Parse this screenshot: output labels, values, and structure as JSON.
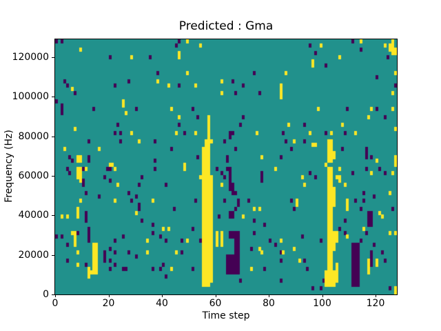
{
  "figure": {
    "background": "#ffffff"
  },
  "chart_data": {
    "type": "heatmap",
    "title": "Predicted : Gma",
    "xlabel": "Time step",
    "ylabel": "Frequency (Hz)",
    "x_range": [
      0,
      128
    ],
    "y_range": [
      0,
      129000
    ],
    "grid_shape": [
      128,
      64
    ],
    "x_ticks": [
      0,
      20,
      40,
      60,
      80,
      100,
      120
    ],
    "y_ticks": [
      0,
      20000,
      40000,
      60000,
      80000,
      100000,
      120000
    ],
    "grid": false,
    "legend": "none",
    "colors": {
      "mid": "#21918c",
      "low": "#440154",
      "high": "#fde725"
    },
    "cell_note": "entries are [timestep, bin] or [timestep, binLow, binHigh]; bin 0 = 0 Hz (bottom), each bin ~2000 Hz",
    "purple_cells": [
      [
        0,
        63
      ],
      [
        2,
        63
      ],
      [
        46,
        63
      ],
      [
        111,
        63
      ],
      [
        45,
        62
      ],
      [
        95,
        62
      ],
      [
        114,
        61
      ],
      [
        97,
        60
      ],
      [
        20,
        59
      ],
      [
        35,
        59
      ],
      [
        124,
        59
      ],
      [
        101,
        57
      ],
      [
        38,
        55
      ],
      [
        74,
        55
      ],
      [
        120,
        54
      ],
      [
        3,
        53
      ],
      [
        27,
        53
      ],
      [
        66,
        53
      ],
      [
        4,
        52
      ],
      [
        22,
        52
      ],
      [
        46,
        52
      ],
      [
        70,
        52
      ],
      [
        127,
        52
      ],
      [
        7,
        50
      ],
      [
        67,
        50
      ],
      [
        76,
        50
      ],
      [
        0,
        48
      ],
      [
        2,
        45,
        47
      ],
      [
        14,
        46
      ],
      [
        30,
        46
      ],
      [
        51,
        46
      ],
      [
        109,
        46
      ],
      [
        120,
        46
      ],
      [
        53,
        44
      ],
      [
        70,
        44
      ],
      [
        123,
        44
      ],
      [
        23,
        42
      ],
      [
        46,
        42
      ],
      [
        69,
        42
      ],
      [
        93,
        42
      ],
      [
        22,
        40
      ],
      [
        24,
        40
      ],
      [
        48,
        40
      ],
      [
        65,
        40
      ],
      [
        66,
        40
      ],
      [
        85,
        40
      ],
      [
        101,
        40
      ],
      [
        108,
        40
      ],
      [
        65,
        39
      ],
      [
        12,
        38
      ],
      [
        24,
        38
      ],
      [
        37,
        38
      ],
      [
        63,
        38
      ],
      [
        86,
        38
      ],
      [
        93,
        38
      ],
      [
        43,
        36
      ],
      [
        67,
        36
      ],
      [
        88,
        36
      ],
      [
        107,
        36
      ],
      [
        116,
        34,
        36
      ],
      [
        5,
        34
      ],
      [
        12,
        33,
        34
      ],
      [
        53,
        34
      ],
      [
        64,
        33,
        34
      ],
      [
        84,
        34
      ],
      [
        118,
        34
      ],
      [
        6,
        33
      ],
      [
        37,
        33
      ],
      [
        4,
        31
      ],
      [
        10,
        31
      ],
      [
        19,
        31
      ],
      [
        20,
        31
      ],
      [
        37,
        31
      ],
      [
        60,
        31
      ],
      [
        64,
        31
      ],
      [
        116,
        31
      ],
      [
        121,
        31
      ],
      [
        5,
        30
      ],
      [
        62,
        30
      ],
      [
        65,
        28,
        31
      ],
      [
        77,
        28,
        30
      ],
      [
        95,
        30
      ],
      [
        111,
        30
      ],
      [
        123,
        30
      ],
      [
        18,
        29
      ],
      [
        32,
        29
      ],
      [
        63,
        29
      ],
      [
        97,
        29
      ],
      [
        10,
        27,
        28
      ],
      [
        20,
        28
      ],
      [
        31,
        27
      ],
      [
        41,
        27
      ],
      [
        65,
        26,
        27
      ],
      [
        66,
        25,
        27
      ],
      [
        11,
        25
      ],
      [
        27,
        25
      ],
      [
        67,
        25
      ],
      [
        115,
        25
      ],
      [
        16,
        24
      ],
      [
        30,
        24
      ],
      [
        119,
        24
      ],
      [
        28,
        23
      ],
      [
        52,
        23
      ],
      [
        63,
        23
      ],
      [
        68,
        22,
        23
      ],
      [
        72,
        23
      ],
      [
        88,
        23
      ],
      [
        112,
        23
      ],
      [
        115,
        23
      ],
      [
        31,
        21,
        22
      ],
      [
        44,
        21
      ],
      [
        67,
        21
      ],
      [
        89,
        21
      ],
      [
        114,
        21
      ],
      [
        126,
        21
      ],
      [
        11,
        18,
        20
      ],
      [
        61,
        19
      ],
      [
        65,
        19,
        20
      ],
      [
        66,
        19,
        20
      ],
      [
        74,
        18
      ],
      [
        108,
        18
      ],
      [
        117,
        17,
        20
      ],
      [
        118,
        17,
        20
      ],
      [
        78,
        17
      ],
      [
        12,
        16
      ],
      [
        36,
        17
      ],
      [
        51,
        16
      ],
      [
        106,
        16
      ],
      [
        32,
        18
      ],
      [
        8,
        15
      ],
      [
        12,
        13,
        15
      ],
      [
        36,
        15
      ],
      [
        65,
        14,
        15
      ],
      [
        66,
        14,
        15
      ],
      [
        74,
        15
      ],
      [
        108,
        15
      ],
      [
        116,
        15
      ],
      [
        0,
        14
      ],
      [
        2,
        14
      ],
      [
        25,
        14
      ],
      [
        39,
        14
      ],
      [
        92,
        14
      ],
      [
        22,
        13
      ],
      [
        41,
        13
      ],
      [
        47,
        13
      ],
      [
        54,
        13
      ],
      [
        80,
        13
      ],
      [
        99,
        13
      ],
      [
        114,
        13
      ],
      [
        4,
        12
      ],
      [
        82,
        12
      ],
      [
        119,
        12
      ],
      [
        67,
        5,
        15
      ],
      [
        68,
        5,
        15
      ],
      [
        64,
        5,
        9
      ],
      [
        65,
        5,
        9
      ],
      [
        66,
        5,
        9
      ],
      [
        20,
        11
      ],
      [
        73,
        11
      ],
      [
        18,
        8,
        10
      ],
      [
        22,
        10
      ],
      [
        27,
        10
      ],
      [
        47,
        10
      ],
      [
        84,
        10
      ],
      [
        122,
        10
      ],
      [
        118,
        7,
        10
      ],
      [
        30,
        9
      ],
      [
        4,
        8
      ],
      [
        20,
        8
      ],
      [
        84,
        8
      ],
      [
        93,
        8
      ],
      [
        123,
        8
      ],
      [
        11,
        7
      ],
      [
        22,
        7
      ],
      [
        40,
        7
      ],
      [
        20,
        6
      ],
      [
        25,
        6
      ],
      [
        26,
        6
      ],
      [
        36,
        6
      ],
      [
        39,
        6
      ],
      [
        51,
        6
      ],
      [
        78,
        6
      ],
      [
        94,
        6
      ],
      [
        41,
        4
      ],
      [
        69,
        3
      ],
      [
        84,
        3
      ],
      [
        100,
        3
      ],
      [
        111,
        2,
        12
      ],
      [
        112,
        2,
        12
      ],
      [
        113,
        2,
        12
      ],
      [
        96,
        1
      ],
      [
        99,
        1
      ],
      [
        125,
        1
      ]
    ],
    "yellow_cells": [
      [
        49,
        63
      ],
      [
        114,
        63
      ],
      [
        126,
        60,
        63
      ],
      [
        99,
        62
      ],
      [
        123,
        62
      ],
      [
        125,
        61,
        62
      ],
      [
        127,
        60,
        61
      ],
      [
        9,
        61
      ],
      [
        54,
        62
      ],
      [
        46,
        59,
        60
      ],
      [
        28,
        59
      ],
      [
        106,
        59
      ],
      [
        96,
        57,
        58
      ],
      [
        49,
        55
      ],
      [
        86,
        55
      ],
      [
        127,
        55
      ],
      [
        38,
        53
      ],
      [
        62,
        53
      ],
      [
        6,
        51
      ],
      [
        42,
        52
      ],
      [
        52,
        52
      ],
      [
        84,
        49,
        52
      ],
      [
        62,
        50
      ],
      [
        126,
        50
      ],
      [
        25,
        47,
        48
      ],
      [
        98,
        46
      ],
      [
        118,
        46
      ],
      [
        126,
        46
      ],
      [
        43,
        46
      ],
      [
        26,
        45
      ],
      [
        46,
        44
      ],
      [
        117,
        44
      ],
      [
        87,
        42
      ],
      [
        107,
        42
      ],
      [
        7,
        41
      ],
      [
        127,
        41
      ],
      [
        28,
        40
      ],
      [
        45,
        40
      ],
      [
        52,
        40
      ],
      [
        75,
        40
      ],
      [
        95,
        40
      ],
      [
        103,
        40
      ],
      [
        112,
        40
      ],
      [
        31,
        38
      ],
      [
        58,
        38
      ],
      [
        89,
        38
      ],
      [
        96,
        37
      ],
      [
        97,
        37
      ],
      [
        3,
        36
      ],
      [
        16,
        36
      ],
      [
        8,
        33,
        34
      ],
      [
        9,
        33,
        34
      ],
      [
        77,
        34
      ],
      [
        104,
        34,
        35
      ],
      [
        127,
        32,
        34
      ],
      [
        102,
        33,
        38
      ],
      [
        103,
        33,
        38
      ],
      [
        20,
        32
      ],
      [
        21,
        32
      ],
      [
        48,
        31,
        32
      ],
      [
        101,
        32
      ],
      [
        120,
        33
      ],
      [
        55,
        2,
        36
      ],
      [
        56,
        2,
        38
      ],
      [
        57,
        2,
        44
      ],
      [
        58,
        3,
        29
      ],
      [
        54,
        29
      ],
      [
        92,
        29
      ],
      [
        62,
        27
      ],
      [
        93,
        27
      ],
      [
        108,
        27
      ],
      [
        23,
        27
      ],
      [
        125,
        25
      ],
      [
        8,
        29,
        31
      ],
      [
        9,
        28,
        31
      ],
      [
        11,
        31
      ],
      [
        22,
        31
      ],
      [
        82,
        31
      ],
      [
        106,
        31
      ],
      [
        105,
        29
      ],
      [
        106,
        28,
        29
      ],
      [
        118,
        30
      ],
      [
        126,
        30
      ],
      [
        9,
        23
      ],
      [
        22,
        23
      ],
      [
        36,
        23
      ],
      [
        90,
        22,
        23
      ],
      [
        109,
        21,
        23
      ],
      [
        74,
        21
      ],
      [
        76,
        21
      ],
      [
        8,
        19,
        21
      ],
      [
        2,
        19
      ],
      [
        4,
        19
      ],
      [
        70,
        19
      ],
      [
        122,
        19
      ],
      [
        121,
        20
      ],
      [
        30,
        20
      ],
      [
        42,
        16
      ],
      [
        115,
        16
      ],
      [
        40,
        16
      ],
      [
        102,
        2,
        31
      ],
      [
        103,
        2,
        31
      ],
      [
        104,
        22,
        26
      ],
      [
        104,
        11,
        15
      ],
      [
        104,
        2,
        5
      ],
      [
        105,
        13,
        15
      ],
      [
        105,
        3,
        7
      ],
      [
        101,
        2,
        5
      ],
      [
        6,
        15
      ],
      [
        7,
        12,
        15
      ],
      [
        60,
        12,
        15
      ],
      [
        62,
        12,
        15
      ],
      [
        125,
        15
      ],
      [
        127,
        15
      ],
      [
        109,
        14
      ],
      [
        34,
        13
      ],
      [
        49,
        13
      ],
      [
        84,
        13
      ],
      [
        14,
        5,
        12
      ],
      [
        15,
        5,
        12
      ],
      [
        8,
        10
      ],
      [
        34,
        10
      ],
      [
        45,
        10
      ],
      [
        85,
        10
      ],
      [
        77,
        10
      ],
      [
        8,
        7
      ],
      [
        91,
        8
      ],
      [
        76,
        11
      ],
      [
        89,
        11
      ],
      [
        12,
        4,
        6
      ],
      [
        13,
        5
      ],
      [
        43,
        6
      ],
      [
        73,
        6
      ],
      [
        117,
        5,
        8
      ],
      [
        120,
        7,
        8
      ],
      [
        127,
        0,
        1
      ]
    ]
  }
}
